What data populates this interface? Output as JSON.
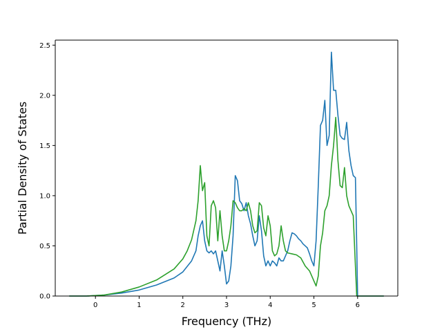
{
  "chart_data": {
    "type": "line",
    "title": "",
    "xlabel": "Frequency (THz)",
    "ylabel": "Partial Density of States",
    "xlim": [
      -0.92,
      6.92
    ],
    "ylim": [
      0.0,
      2.55
    ],
    "xticks": [
      0,
      1,
      2,
      3,
      4,
      5,
      6
    ],
    "xtick_labels": [
      "0",
      "1",
      "2",
      "3",
      "4",
      "5",
      "6"
    ],
    "yticks": [
      0.0,
      0.5,
      1.0,
      1.5,
      2.0,
      2.5
    ],
    "ytick_labels": [
      "0.0",
      "0.5",
      "1.0",
      "1.5",
      "2.0",
      "2.5"
    ],
    "grid": false,
    "legend": false,
    "series": [
      {
        "color": "#1f77b4",
        "x": [
          -0.6,
          -0.2,
          0.2,
          0.6,
          1.0,
          1.4,
          1.8,
          2.0,
          2.2,
          2.3,
          2.35,
          2.4,
          2.45,
          2.5,
          2.55,
          2.6,
          2.65,
          2.7,
          2.75,
          2.8,
          2.85,
          2.9,
          2.95,
          3.0,
          3.05,
          3.1,
          3.15,
          3.2,
          3.25,
          3.3,
          3.35,
          3.4,
          3.45,
          3.5,
          3.55,
          3.6,
          3.65,
          3.7,
          3.75,
          3.8,
          3.85,
          3.9,
          3.95,
          4.0,
          4.05,
          4.1,
          4.15,
          4.2,
          4.25,
          4.3,
          4.35,
          4.4,
          4.45,
          4.5,
          4.55,
          4.6,
          4.65,
          4.7,
          4.75,
          4.8,
          4.85,
          4.9,
          4.95,
          5.0,
          5.05,
          5.1,
          5.15,
          5.2,
          5.25,
          5.3,
          5.35,
          5.4,
          5.45,
          5.5,
          5.55,
          5.6,
          5.65,
          5.7,
          5.75,
          5.8,
          5.85,
          5.9,
          5.95,
          5.98,
          6.0,
          6.05,
          6.6
        ],
        "y": [
          0.0,
          0.0,
          0.01,
          0.03,
          0.06,
          0.11,
          0.18,
          0.24,
          0.35,
          0.45,
          0.6,
          0.7,
          0.75,
          0.55,
          0.45,
          0.43,
          0.45,
          0.42,
          0.45,
          0.35,
          0.25,
          0.45,
          0.3,
          0.12,
          0.15,
          0.3,
          0.6,
          1.2,
          1.15,
          0.95,
          0.92,
          0.85,
          0.93,
          0.8,
          0.72,
          0.6,
          0.5,
          0.55,
          0.8,
          0.65,
          0.4,
          0.3,
          0.35,
          0.3,
          0.35,
          0.33,
          0.3,
          0.38,
          0.35,
          0.35,
          0.4,
          0.45,
          0.55,
          0.63,
          0.62,
          0.6,
          0.57,
          0.55,
          0.52,
          0.5,
          0.48,
          0.42,
          0.35,
          0.3,
          0.55,
          1.1,
          1.7,
          1.75,
          1.95,
          1.5,
          1.6,
          2.43,
          2.05,
          2.05,
          1.8,
          1.6,
          1.57,
          1.56,
          1.73,
          1.45,
          1.3,
          1.2,
          1.18,
          0.5,
          0.0,
          0.0,
          0.0
        ]
      },
      {
        "color": "#2ca02c",
        "x": [
          -0.6,
          -0.2,
          0.2,
          0.6,
          1.0,
          1.4,
          1.8,
          2.0,
          2.1,
          2.2,
          2.3,
          2.35,
          2.4,
          2.45,
          2.5,
          2.55,
          2.6,
          2.65,
          2.7,
          2.75,
          2.8,
          2.85,
          2.9,
          2.95,
          3.0,
          3.05,
          3.1,
          3.15,
          3.2,
          3.25,
          3.3,
          3.35,
          3.4,
          3.45,
          3.5,
          3.55,
          3.6,
          3.65,
          3.7,
          3.75,
          3.8,
          3.85,
          3.9,
          3.95,
          4.0,
          4.05,
          4.1,
          4.15,
          4.2,
          4.25,
          4.3,
          4.35,
          4.4,
          4.5,
          4.6,
          4.7,
          4.8,
          4.9,
          4.95,
          5.0,
          5.05,
          5.1,
          5.15,
          5.2,
          5.25,
          5.3,
          5.35,
          5.4,
          5.45,
          5.5,
          5.55,
          5.6,
          5.65,
          5.7,
          5.75,
          5.8,
          5.85,
          5.9,
          5.95,
          5.98,
          6.0,
          6.05,
          6.6
        ],
        "y": [
          0.0,
          0.0,
          0.01,
          0.04,
          0.09,
          0.16,
          0.27,
          0.37,
          0.45,
          0.56,
          0.75,
          0.95,
          1.3,
          1.05,
          1.13,
          0.6,
          0.5,
          0.9,
          0.95,
          0.88,
          0.55,
          0.85,
          0.6,
          0.45,
          0.45,
          0.55,
          0.7,
          0.95,
          0.93,
          0.88,
          0.85,
          0.85,
          0.87,
          0.85,
          0.93,
          0.85,
          0.7,
          0.63,
          0.65,
          0.93,
          0.9,
          0.68,
          0.6,
          0.8,
          0.7,
          0.45,
          0.4,
          0.42,
          0.5,
          0.7,
          0.55,
          0.45,
          0.43,
          0.42,
          0.41,
          0.38,
          0.3,
          0.25,
          0.2,
          0.15,
          0.1,
          0.2,
          0.5,
          0.63,
          0.85,
          0.9,
          1.0,
          1.3,
          1.5,
          1.78,
          1.35,
          1.1,
          1.08,
          1.28,
          1.0,
          0.9,
          0.85,
          0.8,
          0.3,
          0.0,
          0.0,
          0.0,
          0.0
        ]
      }
    ]
  }
}
